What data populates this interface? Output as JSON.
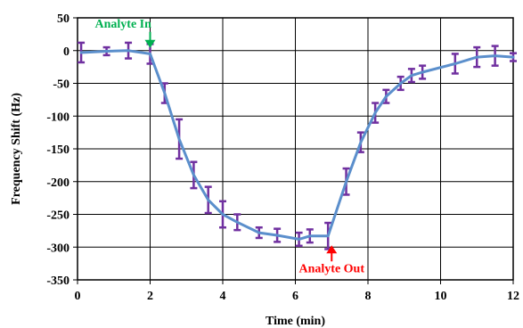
{
  "chart_data": {
    "type": "line",
    "title": "",
    "xlabel": "Time (min)",
    "ylabel": "Frequency Shift (Hz)",
    "xlim": [
      0,
      12
    ],
    "ylim": [
      -350,
      50
    ],
    "x_ticks": [
      0,
      2,
      4,
      6,
      8,
      10,
      12
    ],
    "y_ticks": [
      50,
      0,
      -50,
      -100,
      -150,
      -200,
      -250,
      -300,
      -350
    ],
    "grid": true,
    "legend": "none",
    "series": [
      {
        "color": "#5b8fcc",
        "error_bar_color": "#7030a0",
        "x": [
          0.1,
          0.8,
          1.4,
          2.0,
          2.4,
          2.8,
          3.2,
          3.6,
          4.0,
          4.4,
          5.0,
          5.5,
          6.1,
          6.4,
          6.9,
          7.4,
          7.8,
          8.2,
          8.5,
          8.9,
          9.2,
          9.5,
          10.4,
          11.0,
          11.5,
          12.0
        ],
        "y": [
          -3,
          -1,
          0,
          -5,
          -65,
          -135,
          -190,
          -228,
          -250,
          -262,
          -278,
          -282,
          -288,
          -283,
          -283,
          -200,
          -140,
          -95,
          -70,
          -50,
          -38,
          -33,
          -20,
          -10,
          -8,
          -10
        ],
        "err": [
          15,
          6,
          12,
          15,
          15,
          30,
          20,
          20,
          20,
          12,
          8,
          10,
          10,
          10,
          20,
          20,
          15,
          15,
          10,
          10,
          10,
          10,
          15,
          15,
          15,
          6
        ]
      }
    ],
    "annotations": [
      {
        "text": "Analyte In",
        "x": 2.0,
        "y": 0,
        "color": "#00b050",
        "direction": "down"
      },
      {
        "text": "Analyte Out",
        "x": 7.0,
        "y": -300,
        "color": "#ff0000",
        "direction": "up"
      }
    ]
  }
}
